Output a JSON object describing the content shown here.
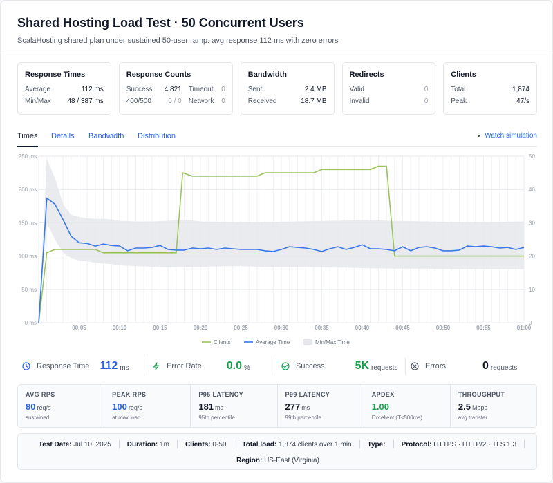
{
  "header": {
    "title": "Shared Hosting Load Test · 50 Concurrent Users",
    "subtitle": "ScalaHosting shared plan under sustained 50-user ramp: avg response 112 ms with zero errors"
  },
  "cards": {
    "response_times": {
      "title": "Response Times",
      "avg_label": "Average",
      "avg_value": "112 ms",
      "minmax_label": "Min/Max",
      "minmax_value": "48 / 387 ms"
    },
    "response_counts": {
      "title": "Response Counts",
      "success_label": "Success",
      "success_value": "4,821",
      "timeout_label": "Timeout",
      "timeout_value": "0",
      "err_label": "400/500",
      "err_value": "0 / 0",
      "network_label": "Network",
      "network_value": "0"
    },
    "bandwidth": {
      "title": "Bandwidth",
      "sent_label": "Sent",
      "sent_value": "2.4 MB",
      "received_label": "Received",
      "received_value": "18.7 MB"
    },
    "redirects": {
      "title": "Redirects",
      "valid_label": "Valid",
      "valid_value": "0",
      "invalid_label": "Invalid",
      "invalid_value": "0"
    },
    "clients": {
      "title": "Clients",
      "total_label": "Total",
      "total_value": "1,874",
      "peak_label": "Peak",
      "peak_value": "47/s"
    }
  },
  "tabs": [
    {
      "label": "Times"
    },
    {
      "label": "Details"
    },
    {
      "label": "Bandwidth"
    },
    {
      "label": "Distribution"
    }
  ],
  "watch_label": "Watch simulation",
  "colors": {
    "clients": "#9cc45d",
    "average": "#3b78e7",
    "band": "#e5e7eb",
    "success": "#16a34a",
    "accent": "#2563eb"
  },
  "chart_data": {
    "type": "line",
    "x_ticks": [
      "00:05",
      "00:10",
      "00:15",
      "00:20",
      "00:25",
      "00:30",
      "00:35",
      "00:40",
      "00:45",
      "00:50",
      "00:55",
      "01:00"
    ],
    "y_left_ticks": [
      "0 ms",
      "50 ms",
      "100 ms",
      "150 ms",
      "200 ms",
      "250 ms"
    ],
    "y_right_ticks": [
      "0",
      "10",
      "20",
      "30",
      "40",
      "50"
    ],
    "y_left_range": [
      0,
      250
    ],
    "y_right_range": [
      0,
      50
    ],
    "x_range_seconds": [
      0,
      60
    ],
    "grid": true,
    "legend_position": "bottom-center",
    "series": [
      {
        "name": "Clients",
        "axis": "right",
        "points": [
          [
            0,
            0
          ],
          [
            1,
            21
          ],
          [
            2,
            22
          ],
          [
            3,
            22
          ],
          [
            7,
            22
          ],
          [
            8,
            21
          ],
          [
            17,
            21
          ],
          [
            17.8,
            45
          ],
          [
            19,
            44
          ],
          [
            27,
            44
          ],
          [
            28,
            45
          ],
          [
            34,
            45
          ],
          [
            35,
            46
          ],
          [
            41,
            46
          ],
          [
            42,
            47
          ],
          [
            43,
            47
          ],
          [
            44,
            20
          ],
          [
            60,
            20
          ]
        ]
      },
      {
        "name": "Average Time",
        "axis": "left",
        "points": [
          [
            0,
            0
          ],
          [
            1,
            187
          ],
          [
            2,
            178
          ],
          [
            3,
            155
          ],
          [
            4,
            130
          ],
          [
            5,
            120
          ],
          [
            6,
            119
          ],
          [
            7,
            115
          ],
          [
            8,
            118
          ],
          [
            9,
            116
          ],
          [
            10,
            115
          ],
          [
            11,
            108
          ],
          [
            12,
            112
          ],
          [
            13,
            112
          ],
          [
            14,
            113
          ],
          [
            15,
            116
          ],
          [
            16,
            110
          ],
          [
            17,
            109
          ],
          [
            18,
            109
          ],
          [
            19,
            112
          ],
          [
            20,
            111
          ],
          [
            21,
            112
          ],
          [
            22,
            110
          ],
          [
            23,
            112
          ],
          [
            24,
            111
          ],
          [
            25,
            110
          ],
          [
            26,
            110
          ],
          [
            27,
            110
          ],
          [
            28,
            108
          ],
          [
            29,
            107
          ],
          [
            30,
            110
          ],
          [
            31,
            114
          ],
          [
            32,
            113
          ],
          [
            33,
            112
          ],
          [
            34,
            110
          ],
          [
            35,
            107
          ],
          [
            36,
            111
          ],
          [
            37,
            114
          ],
          [
            38,
            110
          ],
          [
            39,
            113
          ],
          [
            40,
            117
          ],
          [
            41,
            111
          ],
          [
            42,
            111
          ],
          [
            43,
            110
          ],
          [
            44,
            108
          ],
          [
            45,
            114
          ],
          [
            46,
            108
          ],
          [
            47,
            113
          ],
          [
            48,
            114
          ],
          [
            49,
            112
          ],
          [
            50,
            108
          ],
          [
            51,
            108
          ],
          [
            52,
            109
          ],
          [
            53,
            115
          ],
          [
            54,
            114
          ],
          [
            55,
            115
          ],
          [
            56,
            114
          ],
          [
            57,
            112
          ],
          [
            58,
            113
          ],
          [
            59,
            110
          ],
          [
            60,
            113
          ]
        ]
      },
      {
        "name": "Min/Max Time",
        "axis": "left",
        "points_min_max": [
          [
            0,
            0,
            0
          ],
          [
            1,
            150,
            245
          ],
          [
            2,
            125,
            218
          ],
          [
            3,
            105,
            178
          ],
          [
            4,
            97,
            162
          ],
          [
            5,
            93,
            159
          ],
          [
            6,
            92,
            157
          ],
          [
            7,
            90,
            156
          ],
          [
            8,
            89,
            156
          ],
          [
            9,
            88,
            155
          ],
          [
            10,
            86,
            153
          ],
          [
            12,
            85,
            152
          ],
          [
            14,
            84,
            152
          ],
          [
            16,
            83,
            153
          ],
          [
            18,
            84,
            155
          ],
          [
            20,
            84,
            152
          ],
          [
            24,
            85,
            151
          ],
          [
            28,
            84,
            151
          ],
          [
            32,
            84,
            152
          ],
          [
            36,
            83,
            153
          ],
          [
            40,
            82,
            154
          ],
          [
            44,
            81,
            153
          ],
          [
            48,
            81,
            152
          ],
          [
            52,
            80,
            151
          ],
          [
            56,
            80,
            151
          ],
          [
            60,
            80,
            152
          ]
        ]
      }
    ]
  },
  "stats": [
    {
      "label": "Response Time",
      "value": "112",
      "unit": "ms",
      "icon": "clock-icon"
    },
    {
      "label": "Error Rate",
      "value": "0.0",
      "unit": "%",
      "icon": "lightning-icon"
    },
    {
      "label": "Success",
      "value": "5K",
      "unit": "requests",
      "icon": "check-circle-icon"
    },
    {
      "label": "Errors",
      "value": "0",
      "unit": "requests",
      "icon": "x-circle-icon"
    }
  ],
  "metrics": [
    {
      "label": "AVG RPS",
      "value": "80",
      "unit": "req/s",
      "sub": "sustained"
    },
    {
      "label": "PEAK RPS",
      "value": "100",
      "unit": "req/s",
      "sub": "at max load"
    },
    {
      "label": "P95 LATENCY",
      "value": "181",
      "unit": "ms",
      "sub": "95th percentile"
    },
    {
      "label": "P99 LATENCY",
      "value": "277",
      "unit": "ms",
      "sub": "99th percentile"
    },
    {
      "label": "APDEX",
      "value": "1.00",
      "unit": "",
      "sub": "Excellent (T≤500ms)"
    },
    {
      "label": "THROUGHPUT",
      "value": "2.5",
      "unit": "Mbps",
      "sub": "avg transfer"
    }
  ],
  "footer": {
    "test_date_label": "Test Date:",
    "test_date_value": "Jul 10, 2025",
    "duration_label": "Duration:",
    "duration_value": "1m",
    "clients_label": "Clients:",
    "clients_value": "0-50",
    "total_label": "Total load:",
    "total_value": "1,874 clients over 1 min",
    "type_label": "Type:",
    "protocol_label": "Protocol:",
    "protocol_value": "HTTPS · HTTP/2 · TLS 1.3",
    "region_label": "Region:",
    "region_value": "US-East (Virginia)"
  }
}
